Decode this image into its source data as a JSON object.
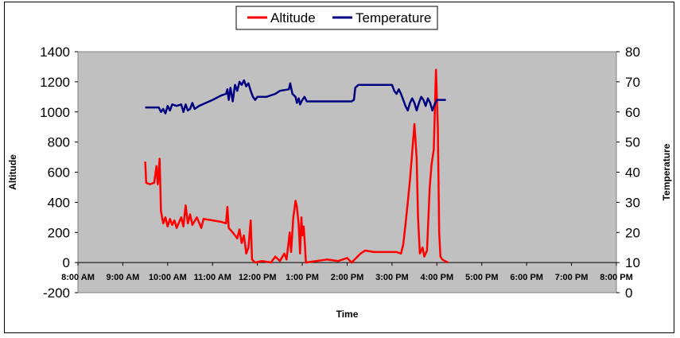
{
  "chart_data": {
    "type": "line",
    "title": "",
    "xlabel": "Time",
    "ylabel_left": "Altitude",
    "ylabel_right": "Temperature",
    "x_ticks": [
      "8:00 AM",
      "9:00 AM",
      "10:00 AM",
      "11:00 AM",
      "12:00 PM",
      "1:00 PM",
      "2:00 PM",
      "3:00 PM",
      "4:00 PM",
      "5:00 PM",
      "6:00 PM",
      "7:00 PM",
      "8:00 PM"
    ],
    "xlim_hours": [
      8,
      20
    ],
    "y_left": {
      "min": -200,
      "max": 1400,
      "step": 200
    },
    "y_right": {
      "min": 0,
      "max": 80,
      "step": 10
    },
    "grid": false,
    "legend": {
      "placement": "top-center"
    },
    "plot_background": "#c0c0c0",
    "series": [
      {
        "name": "Altitude",
        "axis": "left",
        "color": "#ff0000",
        "points": [
          [
            9.5,
            670
          ],
          [
            9.52,
            530
          ],
          [
            9.6,
            520
          ],
          [
            9.7,
            530
          ],
          [
            9.75,
            640
          ],
          [
            9.78,
            520
          ],
          [
            9.82,
            690
          ],
          [
            9.85,
            340
          ],
          [
            9.9,
            260
          ],
          [
            9.95,
            300
          ],
          [
            10.0,
            240
          ],
          [
            10.05,
            290
          ],
          [
            10.1,
            250
          ],
          [
            10.15,
            280
          ],
          [
            10.2,
            230
          ],
          [
            10.3,
            300
          ],
          [
            10.35,
            240
          ],
          [
            10.4,
            380
          ],
          [
            10.45,
            260
          ],
          [
            10.5,
            320
          ],
          [
            10.55,
            250
          ],
          [
            10.65,
            300
          ],
          [
            10.75,
            230
          ],
          [
            10.8,
            290
          ],
          [
            11.0,
            280
          ],
          [
            11.2,
            270
          ],
          [
            11.3,
            260
          ],
          [
            11.33,
            370
          ],
          [
            11.36,
            230
          ],
          [
            11.45,
            200
          ],
          [
            11.55,
            160
          ],
          [
            11.6,
            220
          ],
          [
            11.65,
            130
          ],
          [
            11.7,
            180
          ],
          [
            11.75,
            60
          ],
          [
            11.8,
            100
          ],
          [
            11.85,
            280
          ],
          [
            11.88,
            20
          ],
          [
            11.95,
            0
          ],
          [
            12.1,
            10
          ],
          [
            12.3,
            0
          ],
          [
            12.4,
            40
          ],
          [
            12.5,
            10
          ],
          [
            12.6,
            60
          ],
          [
            12.65,
            20
          ],
          [
            12.72,
            200
          ],
          [
            12.75,
            70
          ],
          [
            12.8,
            300
          ],
          [
            12.85,
            410
          ],
          [
            12.88,
            370
          ],
          [
            12.92,
            250
          ],
          [
            12.95,
            60
          ],
          [
            12.98,
            300
          ],
          [
            13.0,
            180
          ],
          [
            13.03,
            240
          ],
          [
            13.06,
            110
          ],
          [
            13.08,
            0
          ],
          [
            13.55,
            20
          ],
          [
            13.8,
            10
          ],
          [
            14.0,
            30
          ],
          [
            14.1,
            0
          ],
          [
            14.3,
            60
          ],
          [
            14.4,
            80
          ],
          [
            14.6,
            70
          ],
          [
            15.1,
            70
          ],
          [
            15.2,
            60
          ],
          [
            15.25,
            120
          ],
          [
            15.3,
            250
          ],
          [
            15.35,
            400
          ],
          [
            15.4,
            550
          ],
          [
            15.5,
            920
          ],
          [
            15.55,
            690
          ],
          [
            15.58,
            300
          ],
          [
            15.62,
            60
          ],
          [
            15.68,
            100
          ],
          [
            15.72,
            40
          ],
          [
            15.78,
            80
          ],
          [
            15.84,
            500
          ],
          [
            15.88,
            650
          ],
          [
            15.93,
            750
          ],
          [
            15.98,
            1280
          ],
          [
            16.02,
            900
          ],
          [
            16.05,
            200
          ],
          [
            16.08,
            40
          ],
          [
            16.12,
            20
          ],
          [
            16.18,
            10
          ],
          [
            16.25,
            0
          ]
        ]
      },
      {
        "name": "Temperature",
        "axis": "right",
        "color": "#000080",
        "points": [
          [
            9.5,
            61.5
          ],
          [
            9.8,
            61.5
          ],
          [
            9.85,
            60.0
          ],
          [
            9.9,
            61.0
          ],
          [
            9.95,
            59.5
          ],
          [
            10.0,
            62.0
          ],
          [
            10.05,
            60.5
          ],
          [
            10.1,
            62.5
          ],
          [
            10.2,
            62.0
          ],
          [
            10.3,
            62.5
          ],
          [
            10.35,
            60.0
          ],
          [
            10.4,
            62.5
          ],
          [
            10.45,
            60.5
          ],
          [
            10.5,
            61.0
          ],
          [
            10.55,
            63.0
          ],
          [
            10.6,
            61.0
          ],
          [
            10.7,
            62.0
          ],
          [
            11.0,
            64.0
          ],
          [
            11.2,
            65.5
          ],
          [
            11.3,
            66.0
          ],
          [
            11.33,
            67.5
          ],
          [
            11.36,
            64.0
          ],
          [
            11.4,
            68.0
          ],
          [
            11.45,
            63.5
          ],
          [
            11.5,
            69.0
          ],
          [
            11.55,
            67.0
          ],
          [
            11.6,
            70.0
          ],
          [
            11.65,
            69.0
          ],
          [
            11.7,
            70.5
          ],
          [
            11.75,
            68.5
          ],
          [
            11.8,
            69.5
          ],
          [
            11.85,
            67.0
          ],
          [
            11.9,
            65.0
          ],
          [
            11.95,
            64.0
          ],
          [
            12.0,
            65.0
          ],
          [
            12.2,
            65.0
          ],
          [
            12.4,
            66.0
          ],
          [
            12.5,
            67.0
          ],
          [
            12.7,
            67.5
          ],
          [
            12.73,
            69.5
          ],
          [
            12.78,
            66.0
          ],
          [
            12.85,
            65.0
          ],
          [
            12.88,
            63.0
          ],
          [
            12.92,
            64.5
          ],
          [
            12.95,
            62.5
          ],
          [
            13.0,
            64.0
          ],
          [
            13.05,
            65.0
          ],
          [
            13.1,
            63.5
          ],
          [
            13.6,
            63.5
          ],
          [
            13.9,
            63.5
          ],
          [
            14.1,
            63.5
          ],
          [
            14.15,
            64.0
          ],
          [
            14.18,
            68.0
          ],
          [
            14.25,
            69.0
          ],
          [
            14.6,
            69.0
          ],
          [
            15.0,
            69.0
          ],
          [
            15.05,
            67.0
          ],
          [
            15.1,
            66.0
          ],
          [
            15.15,
            67.5
          ],
          [
            15.2,
            66.0
          ],
          [
            15.25,
            64.0
          ],
          [
            15.3,
            62.0
          ],
          [
            15.35,
            60.5
          ],
          [
            15.4,
            63.0
          ],
          [
            15.45,
            64.5
          ],
          [
            15.5,
            63.0
          ],
          [
            15.55,
            60.5
          ],
          [
            15.6,
            63.0
          ],
          [
            15.65,
            65.0
          ],
          [
            15.7,
            64.0
          ],
          [
            15.75,
            62.0
          ],
          [
            15.8,
            64.5
          ],
          [
            15.85,
            63.0
          ],
          [
            15.9,
            60.5
          ],
          [
            15.95,
            62.5
          ],
          [
            16.0,
            64.0
          ],
          [
            16.1,
            64.0
          ],
          [
            16.2,
            64.0
          ]
        ]
      }
    ]
  }
}
